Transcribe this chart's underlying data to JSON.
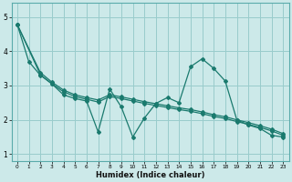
{
  "xlabel": "Humidex (Indice chaleur)",
  "bg_color": "#cce9e9",
  "grid_color": "#99cccc",
  "line_color": "#1a7a6e",
  "spine_color": "#5aabab",
  "xlim": [
    -0.5,
    23.5
  ],
  "ylim": [
    0.8,
    5.4
  ],
  "xticks": [
    0,
    1,
    2,
    3,
    4,
    5,
    6,
    7,
    8,
    9,
    10,
    11,
    12,
    13,
    14,
    15,
    16,
    17,
    18,
    19,
    20,
    21,
    22,
    23
  ],
  "yticks": [
    1,
    2,
    3,
    4,
    5
  ],
  "line1_x": [
    0,
    1,
    2,
    3,
    4,
    5,
    6,
    7,
    8,
    9,
    10,
    11,
    12,
    13,
    14,
    15,
    16,
    17,
    18,
    19,
    20,
    21,
    22,
    23
  ],
  "line1_y": [
    4.78,
    3.7,
    3.3,
    3.05,
    2.73,
    2.62,
    2.55,
    1.65,
    2.9,
    2.38,
    1.5,
    2.05,
    2.48,
    2.65,
    2.5,
    3.55,
    3.78,
    3.5,
    3.13,
    2.0,
    1.85,
    1.75,
    1.55,
    1.5
  ],
  "line2_x": [
    0,
    2,
    3,
    4,
    5,
    6,
    7,
    8,
    9,
    10,
    11,
    12,
    13,
    14,
    15,
    16,
    17,
    18,
    19,
    20,
    21,
    22,
    23
  ],
  "line2_y": [
    4.78,
    3.32,
    3.05,
    2.82,
    2.68,
    2.6,
    2.52,
    2.68,
    2.62,
    2.55,
    2.48,
    2.42,
    2.36,
    2.3,
    2.25,
    2.18,
    2.1,
    2.04,
    1.95,
    1.87,
    1.78,
    1.68,
    1.55
  ],
  "line3_x": [
    0,
    2,
    3,
    4,
    5,
    6,
    7,
    8,
    9,
    10,
    11,
    12,
    13,
    14,
    15,
    16,
    17,
    18,
    19,
    20,
    21,
    22,
    23
  ],
  "line3_y": [
    4.78,
    3.38,
    3.1,
    2.87,
    2.73,
    2.65,
    2.58,
    2.73,
    2.67,
    2.6,
    2.53,
    2.47,
    2.41,
    2.35,
    2.3,
    2.23,
    2.15,
    2.09,
    2.0,
    1.92,
    1.83,
    1.73,
    1.6
  ]
}
